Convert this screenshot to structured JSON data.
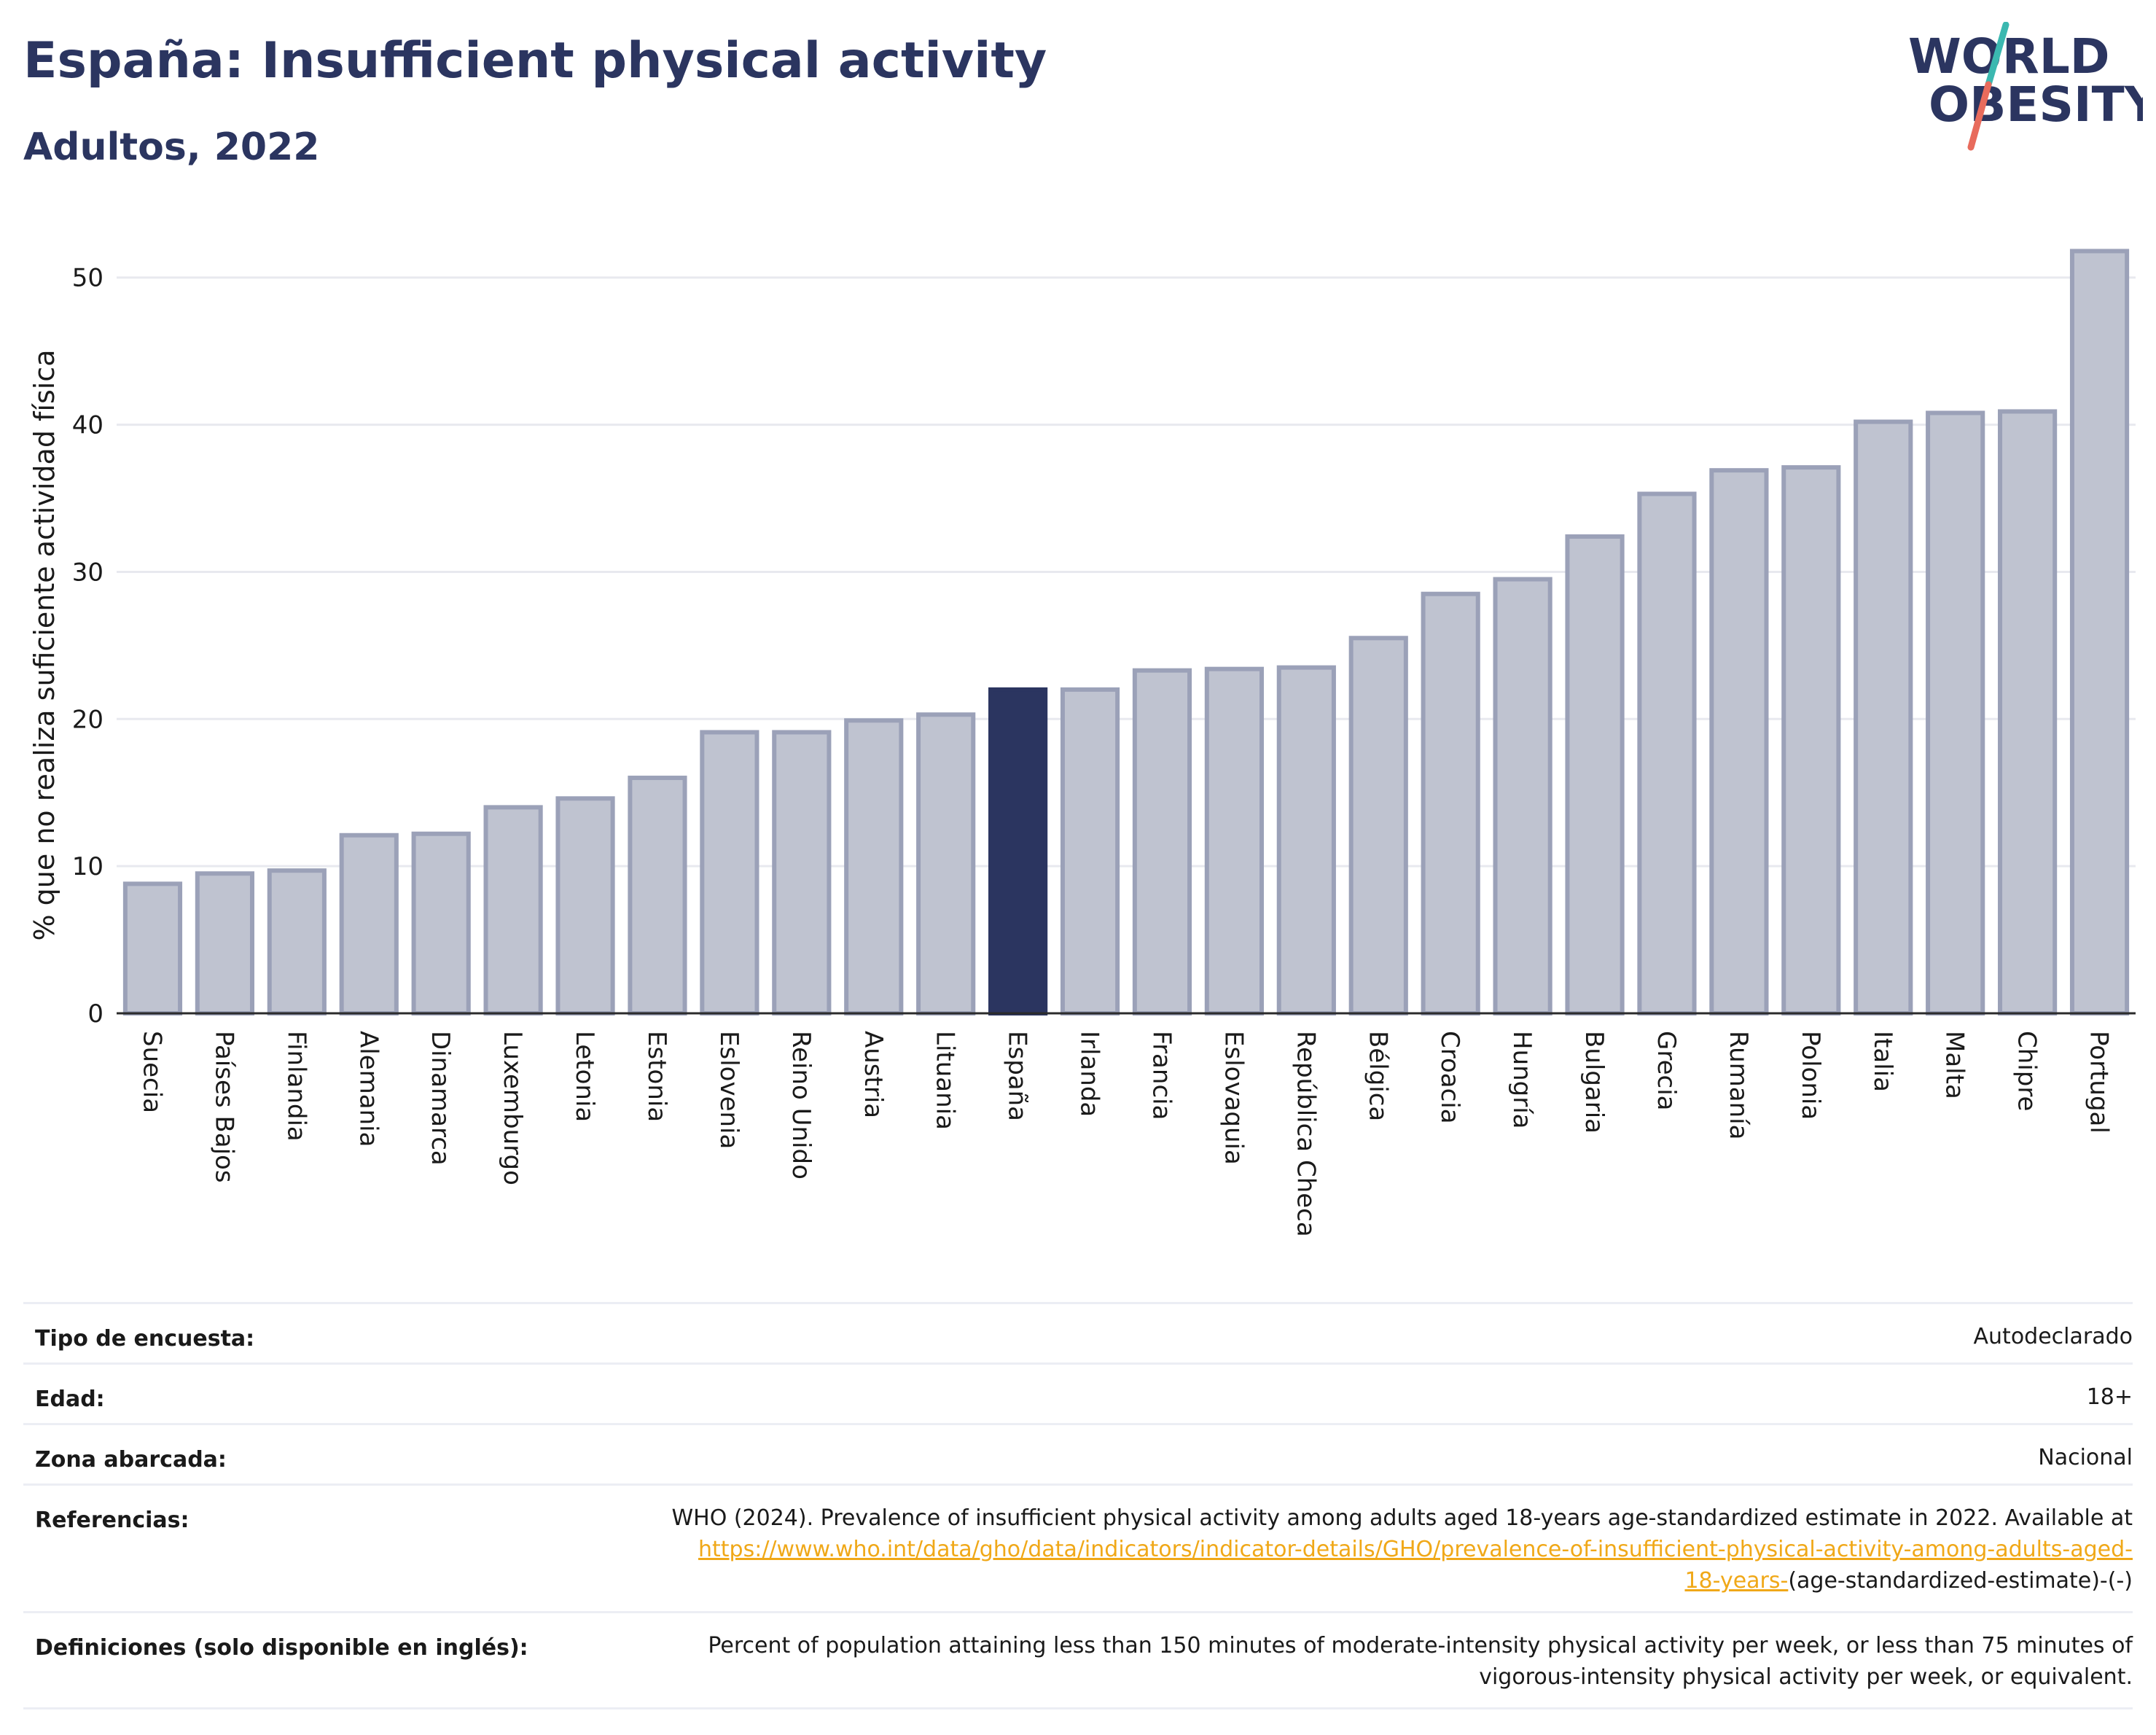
{
  "header": {
    "title": "España: Insufficient physical activity",
    "subtitle": "Adultos, 2022",
    "logo_line1": "WORLD",
    "logo_line2": "OBESITY"
  },
  "colors": {
    "highlight": "#2b3560",
    "bar_fill": "#bfc3d0",
    "bar_edge": "#9ba1b8",
    "logo_accent_top": "#3bb8b0",
    "logo_accent_bottom": "#e86b5c",
    "link": "#f0a818"
  },
  "chart_data": {
    "type": "bar",
    "title": "España: Insufficient physical activity",
    "subtitle": "Adultos, 2022",
    "xlabel": "",
    "ylabel": "% que no realiza suficiente actividad física",
    "ylim": [
      0,
      54
    ],
    "yticks": [
      0,
      10,
      20,
      30,
      40,
      50
    ],
    "grid": true,
    "highlight_category": "España",
    "categories": [
      "Suecia",
      "Países Bajos",
      "Finlandia",
      "Alemania",
      "Dinamarca",
      "Luxemburgo",
      "Letonia",
      "Estonia",
      "Eslovenia",
      "Reino Unido",
      "Austria",
      "Lituania",
      "España",
      "Irlanda",
      "Francia",
      "Eslovaquia",
      "República Checa",
      "Bélgica",
      "Croacia",
      "Hungría",
      "Bulgaria",
      "Grecia",
      "Rumanía",
      "Polonia",
      "Italia",
      "Malta",
      "Chipre",
      "Portugal"
    ],
    "values": [
      8.8,
      9.5,
      9.7,
      12.1,
      12.2,
      14.0,
      14.6,
      16.0,
      19.1,
      19.1,
      19.9,
      20.3,
      22.0,
      22.0,
      23.3,
      23.4,
      23.5,
      25.5,
      28.5,
      29.5,
      32.4,
      35.3,
      36.9,
      37.1,
      40.2,
      40.8,
      40.9,
      51.8
    ]
  },
  "info_table": [
    {
      "label": "Tipo de encuesta:",
      "value": "Autodeclarado"
    },
    {
      "label": "Edad:",
      "value": "18+"
    },
    {
      "label": "Zona abarcada:",
      "value": "Nacional"
    },
    {
      "label": "Referencias:",
      "value_line1": "WHO (2024). Prevalence of insufficient physical activity among adults aged 18-years age-standardized estimate in 2022. Available at",
      "link_part1": "https://www.who.int/data/gho/data/indicators/indicator-details/GHO/prevalence-of-insufficient-physical-activity-among-adults-aged-",
      "link_part2": "18-years-",
      "value_tail": "(age-standardized-estimate)-(-)"
    },
    {
      "label": "Definiciones (solo disponible en inglés):",
      "value_line1": "Percent of population attaining less than 150 minutes of moderate-intensity physical activity per week, or less than 75 minutes of",
      "value_line2": "vigorous-intensity physical activity per week, or equivalent."
    }
  ]
}
